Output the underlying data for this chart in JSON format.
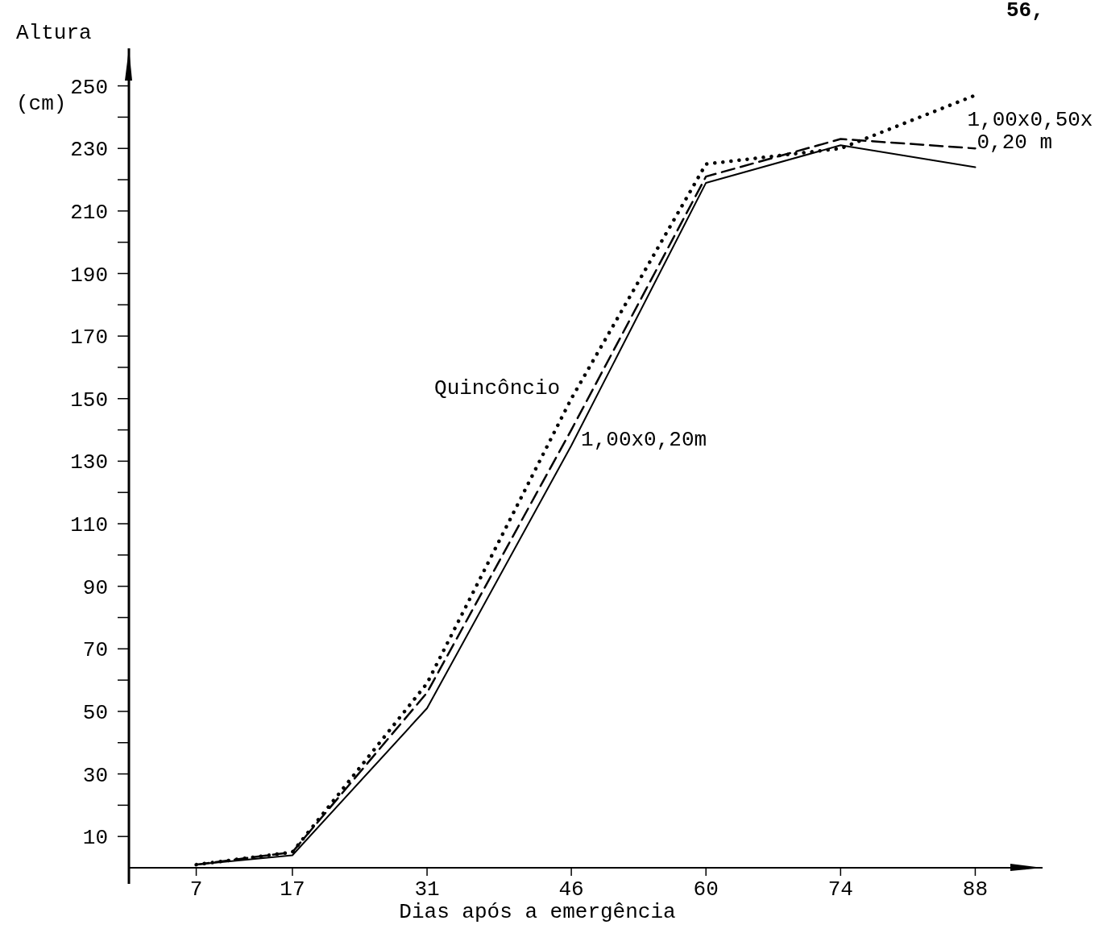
{
  "chart_data": {
    "type": "line",
    "xlabel": "Dias após a emergência",
    "ylabel": "Altura (cm)",
    "annotations": [
      "56,"
    ],
    "xlim": [
      0,
      95
    ],
    "xticks": [
      7,
      17,
      31,
      46,
      60,
      74,
      88
    ],
    "ylim": [
      0,
      262
    ],
    "yticks": [
      {
        "value": 10,
        "label": "10"
      },
      {
        "value": 20,
        "label": null
      },
      {
        "value": 30,
        "label": "30"
      },
      {
        "value": 40,
        "label": null
      },
      {
        "value": 50,
        "label": "50"
      },
      {
        "value": 60,
        "label": null
      },
      {
        "value": 70,
        "label": "70"
      },
      {
        "value": 80,
        "label": null
      },
      {
        "value": 90,
        "label": "90"
      },
      {
        "value": 100,
        "label": null
      },
      {
        "value": 110,
        "label": "110"
      },
      {
        "value": 120,
        "label": null
      },
      {
        "value": 130,
        "label": "130"
      },
      {
        "value": 140,
        "label": null
      },
      {
        "value": 150,
        "label": "150"
      },
      {
        "value": 160,
        "label": null
      },
      {
        "value": 170,
        "label": "170"
      },
      {
        "value": 180,
        "label": null
      },
      {
        "value": 190,
        "label": "190"
      },
      {
        "value": 200,
        "label": null
      },
      {
        "value": 210,
        "label": "210"
      },
      {
        "value": 220,
        "label": null
      },
      {
        "value": 230,
        "label": "230"
      },
      {
        "value": 240,
        "label": null
      },
      {
        "value": 250,
        "label": "250"
      }
    ],
    "x": [
      7,
      17,
      31,
      46,
      60,
      74,
      88
    ],
    "grid": false,
    "marker": "none",
    "series": [
      {
        "name": "1,00x0,20m",
        "color": "#000000",
        "line_style": "solid",
        "values": [
          1,
          4,
          51,
          135,
          219,
          231,
          224
        ]
      },
      {
        "name": "1,00x0,50x 0,20 m",
        "color": "#000000",
        "line_style": "dashed",
        "values": [
          1,
          5,
          56,
          140,
          221,
          233,
          230
        ]
      },
      {
        "name": "Quincôncio",
        "color": "#000000",
        "line_style": "dotted",
        "values": [
          1,
          5,
          59,
          150,
          225,
          230,
          247
        ]
      }
    ]
  }
}
